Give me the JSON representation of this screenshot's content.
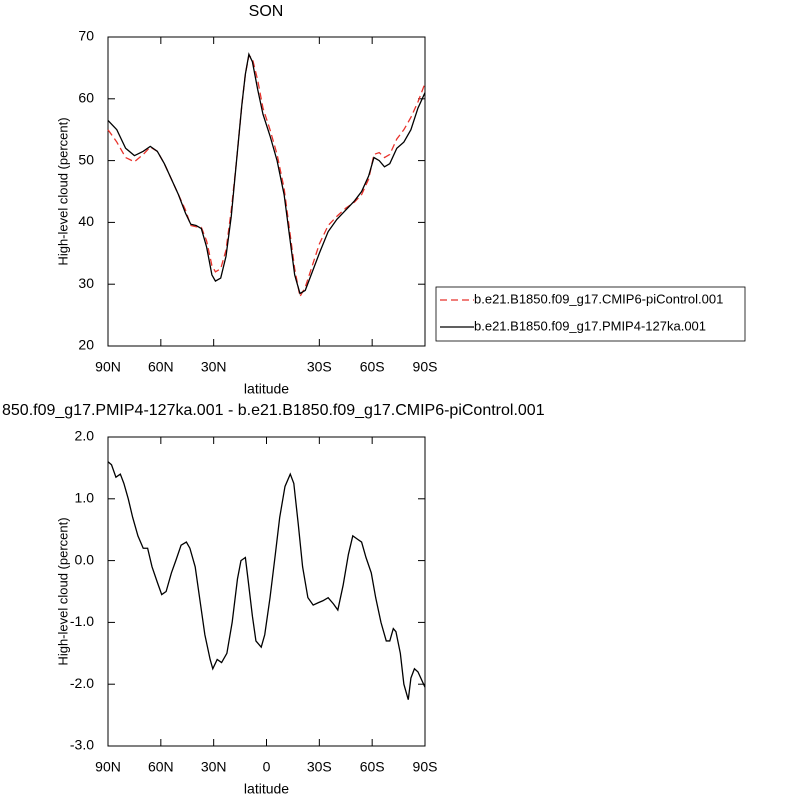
{
  "chart_data": [
    {
      "type": "line",
      "title": "SON",
      "xlabel": "latitude",
      "ylabel": "High-level cloud (percent)",
      "x": [
        90,
        85,
        80,
        75,
        70,
        66,
        62,
        58,
        54,
        50,
        46,
        43,
        40,
        37,
        34,
        31,
        29,
        26,
        23,
        20,
        17,
        14,
        12,
        10,
        8,
        5,
        2,
        -2,
        -6,
        -10,
        -13,
        -16,
        -19,
        -22,
        -26,
        -30,
        -35,
        -40,
        -45,
        -50,
        -54,
        -58,
        -61,
        -64,
        -67,
        -70,
        -74,
        -78,
        -82,
        -86,
        -90
      ],
      "series": [
        {
          "name": "b.e21.B1850.f09_g17.CMIP6-piControl.001",
          "color": "#e8322b",
          "dashed": true,
          "values": [
            55,
            53,
            50.5,
            49.8,
            51,
            52.2,
            51.5,
            49.5,
            47,
            44.5,
            42,
            39.5,
            39.3,
            39.2,
            37,
            33,
            32,
            32.5,
            35.5,
            42,
            50,
            59,
            64,
            67,
            66.5,
            63,
            58.5,
            55,
            51,
            45.5,
            39,
            32.5,
            28,
            29.5,
            33,
            36.5,
            39.5,
            41,
            42.3,
            43.3,
            44.5,
            47,
            51,
            51.3,
            50.5,
            51,
            53.5,
            55,
            57,
            59.5,
            62.5
          ]
        },
        {
          "name": "b.e21.B1850.f09_g17.PMIP4-127ka.001",
          "color": "#000000",
          "dashed": false,
          "values": [
            56.5,
            55,
            52,
            50.8,
            51.5,
            52.3,
            51.5,
            49.5,
            47,
            44.5,
            41.5,
            39.7,
            39.5,
            39,
            36,
            31.5,
            30.5,
            31,
            34.5,
            41,
            50,
            59,
            64,
            67.2,
            66,
            61.5,
            57.5,
            54,
            50,
            44.5,
            38,
            31.5,
            28.5,
            29,
            32,
            35,
            38.5,
            40.5,
            42,
            43.5,
            45,
            47.5,
            50.5,
            50,
            49,
            49.5,
            52,
            53,
            55,
            58.5,
            61
          ]
        }
      ],
      "xlim": [
        90,
        -90
      ],
      "ylim": [
        20,
        70
      ],
      "xticks": [
        {
          "value": 90,
          "label": "90N"
        },
        {
          "value": 60,
          "label": "60N"
        },
        {
          "value": 30,
          "label": "30N"
        },
        {
          "value": -30,
          "label": "30S"
        },
        {
          "value": -60,
          "label": "60S"
        },
        {
          "value": -90,
          "label": "90S"
        }
      ],
      "yticks": [
        20,
        30,
        40,
        50,
        60,
        70
      ],
      "legend": "outside-right"
    },
    {
      "type": "line",
      "title": "850.f09_g17.PMIP4-127ka.001 - b.e21.B1850.f09_g17.CMIP6-piControl.001",
      "xlabel": "latitude",
      "ylabel": "High-level cloud (percent)",
      "x": [
        90,
        88,
        85.5,
        83,
        81,
        78.5,
        76,
        73,
        70,
        67.5,
        65,
        62,
        59.5,
        57,
        54,
        51.5,
        48.5,
        45.5,
        43.5,
        40.5,
        38,
        35,
        32,
        30.5,
        28,
        25.5,
        22.5,
        19.5,
        16.5,
        14.5,
        12,
        10.5,
        8,
        6,
        3,
        1,
        -2,
        -5,
        -7.5,
        -10.5,
        -13.5,
        -15.5,
        -18,
        -20.5,
        -23.5,
        -26.5,
        -29.5,
        -32,
        -35,
        -38,
        -40.5,
        -43.5,
        -46.5,
        -49,
        -51.5,
        -54,
        -56.5,
        -59.5,
        -62,
        -65,
        -68,
        -70,
        -72,
        -73.5,
        -76,
        -78,
        -80.5,
        -82,
        -84,
        -86,
        -90
      ],
      "series": [
        {
          "name": null,
          "color": "#000000",
          "dashed": false,
          "values": [
            1.6,
            1.55,
            1.35,
            1.4,
            1.25,
            1.0,
            0.7,
            0.4,
            0.2,
            0.2,
            -0.1,
            -0.35,
            -0.55,
            -0.5,
            -0.2,
            0.0,
            0.25,
            0.3,
            0.2,
            -0.1,
            -0.6,
            -1.2,
            -1.6,
            -1.75,
            -1.6,
            -1.65,
            -1.5,
            -1.0,
            -0.3,
            0.0,
            0.05,
            -0.3,
            -0.9,
            -1.3,
            -1.4,
            -1.2,
            -0.6,
            0.1,
            0.7,
            1.2,
            1.4,
            1.25,
            0.6,
            -0.1,
            -0.6,
            -0.72,
            -0.68,
            -0.65,
            -0.6,
            -0.7,
            -0.8,
            -0.4,
            0.1,
            0.4,
            0.35,
            0.3,
            0.05,
            -0.2,
            -0.6,
            -1.0,
            -1.3,
            -1.3,
            -1.1,
            -1.15,
            -1.5,
            -2.0,
            -2.25,
            -1.9,
            -1.75,
            -1.8,
            -2.05
          ]
        }
      ],
      "xlim": [
        90,
        -90
      ],
      "ylim": [
        -3,
        2
      ],
      "xticks": [
        {
          "value": 90,
          "label": "90N"
        },
        {
          "value": 60,
          "label": "60N"
        },
        {
          "value": 30,
          "label": "30N"
        },
        0,
        {
          "value": -30,
          "label": "30S"
        },
        {
          "value": -60,
          "label": "60S"
        },
        {
          "value": -90,
          "label": "90S"
        }
      ],
      "yticks": [
        {
          "value": -3,
          "label": "-3.0"
        },
        {
          "value": -2,
          "label": "-2.0"
        },
        {
          "value": -1,
          "label": "-1.0"
        },
        {
          "value": 0,
          "label": "0.0"
        },
        {
          "value": 1,
          "label": "1.0"
        },
        {
          "value": 2,
          "label": "2.0"
        }
      ]
    }
  ]
}
